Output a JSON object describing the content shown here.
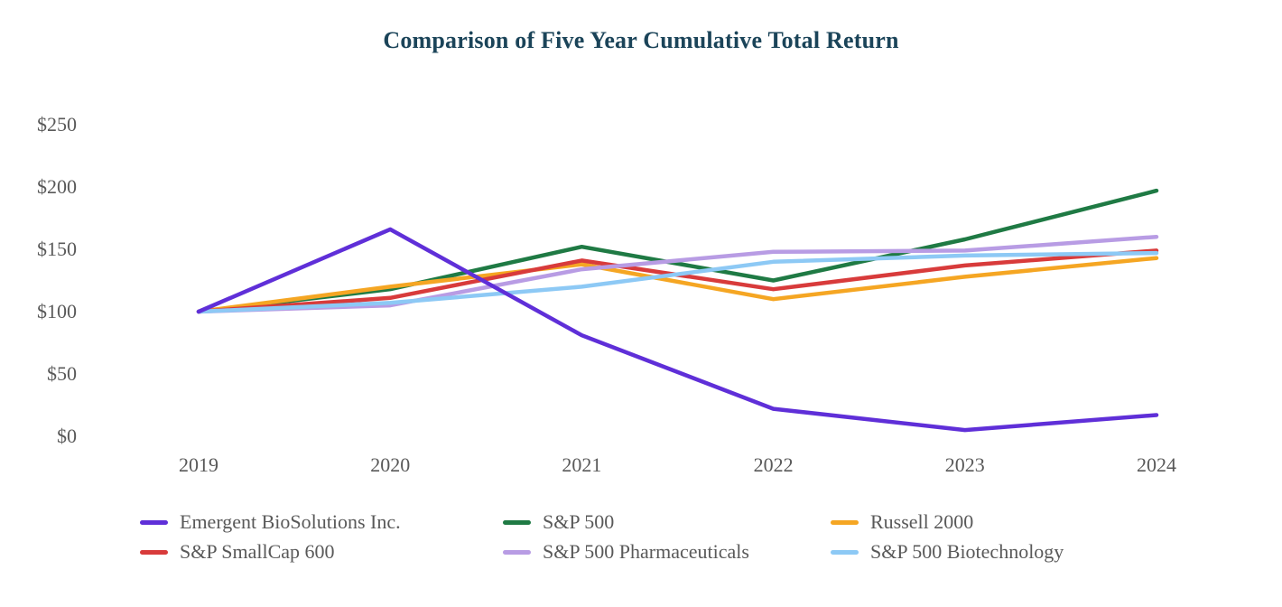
{
  "title": "Comparison of Five Year Cumulative Total Return",
  "colors": {
    "title_text": "#1B4459",
    "axis_text": "#595959",
    "background": "#FFFFFF"
  },
  "chart_data": {
    "type": "line",
    "title": "Comparison of Five Year Cumulative Total Return",
    "xlabel": "",
    "ylabel": "",
    "x": [
      "2019",
      "2020",
      "2021",
      "2022",
      "2023",
      "2024"
    ],
    "y_ticks": [
      "$0",
      "$50",
      "$100",
      "$150",
      "$200",
      "$250"
    ],
    "y_tick_values": [
      0,
      50,
      100,
      150,
      200,
      250
    ],
    "ylim": [
      0,
      250
    ],
    "grid": false,
    "legend_position": "bottom",
    "series": [
      {
        "name": "Emergent BioSolutions Inc.",
        "color": "#5F2FD8",
        "values": [
          100,
          166,
          81,
          22,
          5,
          17
        ]
      },
      {
        "name": "S&P 500",
        "color": "#1F7A44",
        "values": [
          100,
          118,
          152,
          125,
          158,
          197
        ]
      },
      {
        "name": "Russell 2000",
        "color": "#F5A623",
        "values": [
          100,
          120,
          138,
          110,
          128,
          143
        ]
      },
      {
        "name": "S&P SmallCap 600",
        "color": "#D83B3B",
        "values": [
          100,
          111,
          141,
          118,
          137,
          149
        ]
      },
      {
        "name": "S&P 500 Pharmaceuticals",
        "color": "#B89CE4",
        "values": [
          100,
          105,
          134,
          148,
          149,
          160
        ]
      },
      {
        "name": "S&P 500 Biotechnology",
        "color": "#8DC9F5",
        "values": [
          100,
          107,
          120,
          140,
          145,
          147
        ]
      }
    ],
    "legend_order": [
      "Emergent BioSolutions Inc.",
      "S&P 500",
      "Russell 2000",
      "S&P SmallCap 600",
      "S&P 500 Pharmaceuticals",
      "S&P 500 Biotechnology"
    ]
  }
}
